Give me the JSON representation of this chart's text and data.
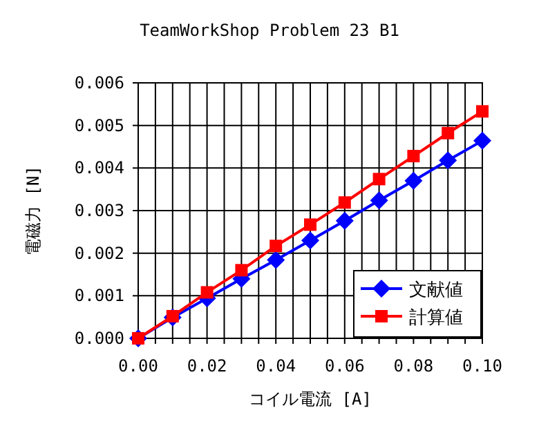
{
  "chart_data": {
    "type": "line",
    "title": "TeamWorkShop Problem 23 B1",
    "xlabel": "コイル電流 [A]",
    "ylabel": "電磁力 [N]",
    "x": [
      0,
      0.01,
      0.02,
      0.03,
      0.04,
      0.05,
      0.06,
      0.07,
      0.08,
      0.09,
      0.1
    ],
    "series": [
      {
        "name": "文献値",
        "color": "#0000ff",
        "marker": "diamond",
        "values": [
          0,
          0.00049,
          0.00094,
          0.0014,
          0.00184,
          0.0023,
          0.00276,
          0.00324,
          0.0037,
          0.00418,
          0.00464
        ]
      },
      {
        "name": "計算値",
        "color": "#ff0000",
        "marker": "square",
        "values": [
          0,
          0.00052,
          0.00108,
          0.0016,
          0.00217,
          0.00267,
          0.00319,
          0.00374,
          0.00428,
          0.00482,
          0.00533
        ]
      }
    ],
    "xlim": [
      0,
      0.1
    ],
    "ylim": [
      0,
      0.006
    ],
    "xticks": [
      {
        "value": 0,
        "label": "0.00"
      },
      {
        "value": 0.005,
        "label": null
      },
      {
        "value": 0.01,
        "label": null
      },
      {
        "value": 0.015,
        "label": null
      },
      {
        "value": 0.02,
        "label": "0.02"
      },
      {
        "value": 0.025,
        "label": null
      },
      {
        "value": 0.03,
        "label": null
      },
      {
        "value": 0.035,
        "label": null
      },
      {
        "value": 0.04,
        "label": "0.04"
      },
      {
        "value": 0.045,
        "label": null
      },
      {
        "value": 0.05,
        "label": null
      },
      {
        "value": 0.055,
        "label": null
      },
      {
        "value": 0.06,
        "label": "0.06"
      },
      {
        "value": 0.065,
        "label": null
      },
      {
        "value": 0.07,
        "label": null
      },
      {
        "value": 0.075,
        "label": null
      },
      {
        "value": 0.08,
        "label": "0.08"
      },
      {
        "value": 0.085,
        "label": null
      },
      {
        "value": 0.09,
        "label": null
      },
      {
        "value": 0.095,
        "label": null
      },
      {
        "value": 0.1,
        "label": "0.10"
      }
    ],
    "yticks": [
      {
        "value": 0,
        "label": "0.000"
      },
      {
        "value": 0.001,
        "label": "0.001"
      },
      {
        "value": 0.002,
        "label": "0.002"
      },
      {
        "value": 0.003,
        "label": "0.003"
      },
      {
        "value": 0.004,
        "label": "0.004"
      },
      {
        "value": 0.005,
        "label": "0.005"
      },
      {
        "value": 0.006,
        "label": "0.006"
      }
    ],
    "grid": true,
    "legend": "bottom right",
    "line_style": "solid"
  }
}
